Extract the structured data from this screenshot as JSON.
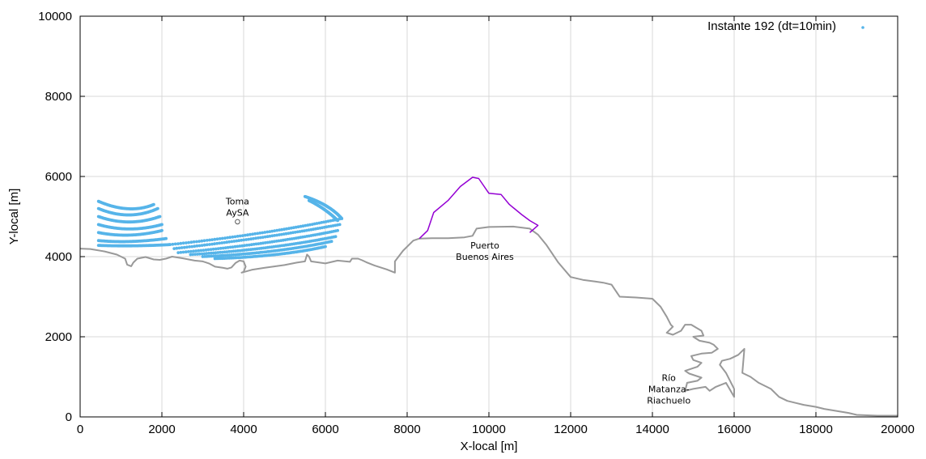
{
  "chart_data": {
    "type": "scatter",
    "title": "",
    "xlabel": "X-local [m]",
    "ylabel": "Y-local [m]",
    "xlim": [
      0,
      20000
    ],
    "ylim": [
      0,
      10000
    ],
    "grid": true,
    "legend_position": "top-right",
    "xticks": [
      "0",
      "2000",
      "4000",
      "6000",
      "8000",
      "10000",
      "12000",
      "14000",
      "16000",
      "18000",
      "20000"
    ],
    "yticks": [
      "0",
      "2000",
      "4000",
      "6000",
      "8000",
      "10000"
    ],
    "colors": {
      "particles": "#56b4e9",
      "coastline": "#999999",
      "port": "#9400d3",
      "marker": "#555555"
    },
    "legend": {
      "label": "Instante 192 (dt=10min)"
    },
    "annotations": [
      {
        "id": "toma",
        "lines": [
          "Toma",
          "AySA"
        ],
        "x": 3850,
        "y": 5300
      },
      {
        "id": "puerto",
        "lines": [
          "Puerto",
          "Buenos Aires"
        ],
        "x": 9900,
        "y": 4200
      },
      {
        "id": "rio",
        "lines": [
          "Río",
          "Matanza-",
          "Riachuelo"
        ],
        "x": 14400,
        "y": 900
      }
    ],
    "marker_point": {
      "x": 3850,
      "y": 4870
    },
    "series": [
      {
        "type": "line",
        "role": "coastline",
        "points": [
          [
            0,
            4200
          ],
          [
            250,
            4190
          ],
          [
            600,
            4130
          ],
          [
            900,
            4050
          ],
          [
            1100,
            3950
          ],
          [
            1150,
            3800
          ],
          [
            1250,
            3760
          ],
          [
            1300,
            3850
          ],
          [
            1400,
            3950
          ],
          [
            1600,
            3990
          ],
          [
            1800,
            3930
          ],
          [
            1950,
            3920
          ],
          [
            2100,
            3950
          ],
          [
            2250,
            4000
          ],
          [
            2500,
            3960
          ],
          [
            2800,
            3900
          ],
          [
            3000,
            3880
          ],
          [
            3150,
            3830
          ],
          [
            3300,
            3750
          ],
          [
            3500,
            3720
          ],
          [
            3600,
            3700
          ],
          [
            3700,
            3730
          ],
          [
            3800,
            3840
          ],
          [
            3900,
            3900
          ],
          [
            4000,
            3880
          ],
          [
            4050,
            3750
          ],
          [
            4000,
            3620
          ],
          [
            3950,
            3600
          ],
          [
            4200,
            3670
          ],
          [
            4500,
            3720
          ],
          [
            5000,
            3790
          ],
          [
            5300,
            3850
          ],
          [
            5500,
            3880
          ],
          [
            5550,
            4050
          ],
          [
            5600,
            4000
          ],
          [
            5650,
            3880
          ],
          [
            6000,
            3830
          ],
          [
            6300,
            3900
          ],
          [
            6600,
            3870
          ],
          [
            6650,
            3950
          ],
          [
            6800,
            3950
          ],
          [
            6900,
            3910
          ],
          [
            7000,
            3860
          ],
          [
            7200,
            3780
          ],
          [
            7500,
            3680
          ],
          [
            7700,
            3600
          ],
          [
            7700,
            3880
          ],
          [
            7900,
            4150
          ],
          [
            8150,
            4400
          ],
          [
            8300,
            4450
          ],
          [
            8600,
            4460
          ],
          [
            9000,
            4460
          ],
          [
            9400,
            4480
          ],
          [
            9600,
            4520
          ],
          [
            9700,
            4700
          ],
          [
            10000,
            4740
          ],
          [
            10600,
            4750
          ],
          [
            11000,
            4700
          ],
          [
            11200,
            4550
          ],
          [
            11400,
            4300
          ],
          [
            11700,
            3850
          ],
          [
            12000,
            3490
          ],
          [
            12300,
            3420
          ],
          [
            12600,
            3380
          ],
          [
            12800,
            3350
          ],
          [
            13000,
            3300
          ],
          [
            13200,
            3000
          ],
          [
            13600,
            2980
          ],
          [
            14000,
            2950
          ],
          [
            14200,
            2750
          ],
          [
            14350,
            2500
          ],
          [
            14450,
            2300
          ],
          [
            14500,
            2250
          ],
          [
            14350,
            2100
          ],
          [
            14500,
            2050
          ],
          [
            14700,
            2150
          ],
          [
            14800,
            2300
          ],
          [
            14950,
            2300
          ],
          [
            15200,
            2150
          ],
          [
            15250,
            2030
          ],
          [
            15000,
            2000
          ],
          [
            15150,
            1900
          ],
          [
            15400,
            1850
          ],
          [
            15500,
            1800
          ],
          [
            15600,
            1700
          ],
          [
            15450,
            1600
          ],
          [
            15200,
            1580
          ],
          [
            14950,
            1520
          ],
          [
            15000,
            1420
          ],
          [
            15200,
            1350
          ],
          [
            15100,
            1250
          ],
          [
            14800,
            1150
          ],
          [
            14900,
            1080
          ],
          [
            15200,
            980
          ],
          [
            15100,
            900
          ],
          [
            14850,
            850
          ],
          [
            14800,
            650
          ],
          [
            15000,
            700
          ],
          [
            15300,
            750
          ],
          [
            15400,
            650
          ],
          [
            15550,
            750
          ],
          [
            15800,
            850
          ],
          [
            16000,
            500
          ],
          [
            16000,
            700
          ],
          [
            15800,
            1100
          ],
          [
            15650,
            1300
          ],
          [
            15700,
            1400
          ],
          [
            15900,
            1450
          ],
          [
            16100,
            1550
          ],
          [
            16250,
            1700
          ],
          [
            16200,
            1100
          ],
          [
            16400,
            1000
          ],
          [
            16600,
            850
          ],
          [
            16900,
            700
          ],
          [
            17100,
            500
          ],
          [
            17300,
            400
          ],
          [
            17500,
            350
          ],
          [
            17700,
            300
          ],
          [
            18000,
            250
          ],
          [
            18200,
            200
          ],
          [
            18500,
            150
          ],
          [
            18800,
            100
          ],
          [
            19000,
            50
          ],
          [
            19500,
            30
          ],
          [
            20000,
            30
          ]
        ]
      },
      {
        "type": "line",
        "role": "port-boundary",
        "points": [
          [
            8300,
            4450
          ],
          [
            8500,
            4650
          ],
          [
            8650,
            5100
          ],
          [
            9000,
            5400
          ],
          [
            9300,
            5750
          ],
          [
            9600,
            5980
          ],
          [
            9750,
            5950
          ],
          [
            10000,
            5580
          ],
          [
            10300,
            5550
          ],
          [
            10500,
            5300
          ],
          [
            10800,
            5050
          ],
          [
            11000,
            4900
          ],
          [
            11200,
            4780
          ],
          [
            11000,
            4600
          ]
        ]
      },
      {
        "type": "scatter",
        "role": "particle-cluster",
        "name": "Instante 192 (dt=10min)",
        "filaments": [
          {
            "start": [
              450,
              5380
            ],
            "mid": [
              1200,
              5050
            ],
            "end": [
              1800,
              5300
            ]
          },
          {
            "start": [
              450,
              5200
            ],
            "mid": [
              1200,
              4880
            ],
            "end": [
              1900,
              5200
            ]
          },
          {
            "start": [
              450,
              5000
            ],
            "mid": [
              1200,
              4730
            ],
            "end": [
              1950,
              5000
            ]
          },
          {
            "start": [
              450,
              4800
            ],
            "mid": [
              1200,
              4580
            ],
            "end": [
              2000,
              4800
            ]
          },
          {
            "start": [
              450,
              4600
            ],
            "mid": [
              1200,
              4450
            ],
            "end": [
              2000,
              4650
            ]
          },
          {
            "start": [
              450,
              4400
            ],
            "mid": [
              1200,
              4330
            ],
            "end": [
              2100,
              4450
            ]
          },
          {
            "start": [
              450,
              4280
            ],
            "mid": [
              1300,
              4250
            ],
            "end": [
              2200,
              4300
            ]
          },
          {
            "start": [
              2200,
              4300
            ],
            "mid": [
              4500,
              4550
            ],
            "end": [
              6400,
              4950
            ]
          },
          {
            "start": [
              2300,
              4200
            ],
            "mid": [
              4500,
              4450
            ],
            "end": [
              6350,
              4800
            ]
          },
          {
            "start": [
              2400,
              4100
            ],
            "mid": [
              4600,
              4300
            ],
            "end": [
              6300,
              4650
            ]
          },
          {
            "start": [
              2700,
              4050
            ],
            "mid": [
              4700,
              4180
            ],
            "end": [
              6250,
              4500
            ]
          },
          {
            "start": [
              3000,
              4000
            ],
            "mid": [
              4800,
              4080
            ],
            "end": [
              6150,
              4380
            ]
          },
          {
            "start": [
              3300,
              3950
            ],
            "mid": [
              4900,
              4000
            ],
            "end": [
              6000,
              4250
            ]
          },
          {
            "start": [
              5500,
              5500
            ],
            "mid": [
              6100,
              5300
            ],
            "end": [
              6400,
              4950
            ]
          },
          {
            "start": [
              5600,
              5400
            ],
            "mid": [
              6000,
              5200
            ],
            "end": [
              6300,
              4900
            ]
          }
        ]
      }
    ]
  }
}
